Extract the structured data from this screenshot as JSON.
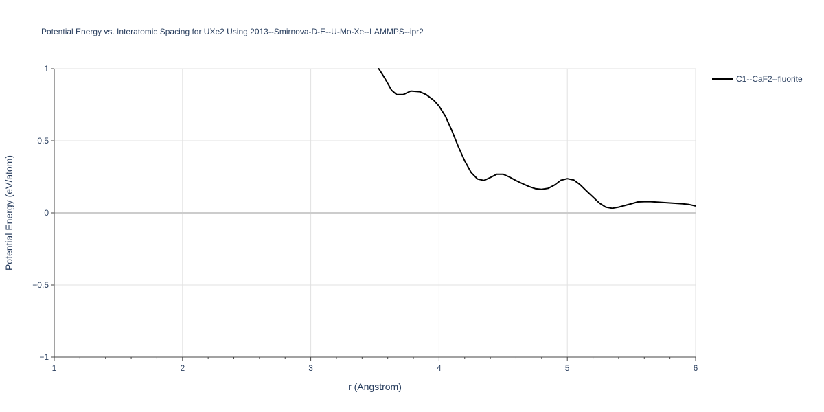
{
  "chart_data": {
    "type": "line",
    "title": "Potential Energy vs. Interatomic Spacing for UXe2 Using 2013--Smirnova-D-E--U-Mo-Xe--LAMMPS--ipr2",
    "xlabel": "r (Angstrom)",
    "ylabel": "Potential Energy (eV/atom)",
    "xlim": [
      1,
      6
    ],
    "ylim": [
      -1,
      1
    ],
    "xticks": [
      1,
      2,
      3,
      4,
      5,
      6
    ],
    "xtick_labels": [
      "1",
      "2",
      "3",
      "4",
      "5",
      "6"
    ],
    "yticks": [
      -1,
      -0.5,
      0,
      0.5,
      1
    ],
    "ytick_labels": [
      "−1",
      "−0.5",
      "0",
      "0.5",
      "1"
    ],
    "grid": true,
    "legend_position": "top-right",
    "series": [
      {
        "name": "C1--CaF2--fluorite",
        "color": "#000000",
        "x": [
          3.53,
          3.58,
          3.63,
          3.67,
          3.72,
          3.78,
          3.85,
          3.9,
          3.96,
          4.0,
          4.05,
          4.1,
          4.15,
          4.2,
          4.25,
          4.3,
          4.35,
          4.4,
          4.45,
          4.5,
          4.55,
          4.6,
          4.65,
          4.7,
          4.75,
          4.8,
          4.85,
          4.9,
          4.95,
          5.0,
          5.05,
          5.1,
          5.15,
          5.2,
          5.25,
          5.3,
          5.35,
          5.4,
          5.45,
          5.5,
          5.55,
          5.6,
          5.65,
          5.7,
          5.75,
          5.8,
          5.85,
          5.9,
          5.95,
          6.0
        ],
        "y": [
          1.0,
          0.93,
          0.85,
          0.82,
          0.82,
          0.845,
          0.84,
          0.82,
          0.78,
          0.74,
          0.67,
          0.57,
          0.46,
          0.36,
          0.28,
          0.235,
          0.225,
          0.245,
          0.268,
          0.268,
          0.248,
          0.224,
          0.203,
          0.183,
          0.168,
          0.163,
          0.17,
          0.193,
          0.226,
          0.237,
          0.228,
          0.195,
          0.152,
          0.11,
          0.068,
          0.04,
          0.032,
          0.04,
          0.052,
          0.064,
          0.076,
          0.078,
          0.078,
          0.075,
          0.072,
          0.069,
          0.066,
          0.063,
          0.058,
          0.048
        ]
      }
    ]
  }
}
